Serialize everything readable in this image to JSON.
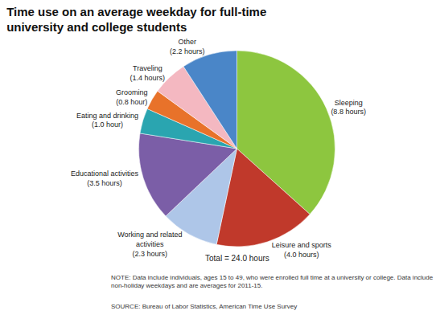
{
  "chart_data": {
    "type": "pie",
    "title": "Time use on an average weekday for full-time\nuniversity and college students",
    "categories": [
      "Sleeping",
      "Leisure and sports",
      "Working and related\nactivities",
      "Educational activities",
      "Eating and drinking",
      "Grooming",
      "Traveling",
      "Other"
    ],
    "values": [
      8.8,
      4.0,
      2.3,
      3.5,
      1.0,
      0.8,
      1.4,
      2.2
    ],
    "value_labels": [
      "(8.8 hours)",
      "(4.0 hours)",
      "(2.3 hours)",
      "(3.5 hours)",
      "(1.0 hour)",
      "(0.8 hour)",
      "(1.4 hours)",
      "(2.2 hours)"
    ],
    "colors": [
      "#8dc63f",
      "#c0392b",
      "#aec6e8",
      "#7b5ea7",
      "#2aa5b0",
      "#e8722a",
      "#f4b8c1",
      "#4a86c8"
    ],
    "data_labels": true,
    "total_label": "Total = 24.0 hours",
    "note": "NOTE: Data include individuals, ages 15 to 49, who were enrolled full time at a university or college. Data include\nnon-holiday weekdays and are averages for 2011-15.",
    "source": "SOURCE: Bureau of Labor Statistics, American Time Use Survey"
  }
}
